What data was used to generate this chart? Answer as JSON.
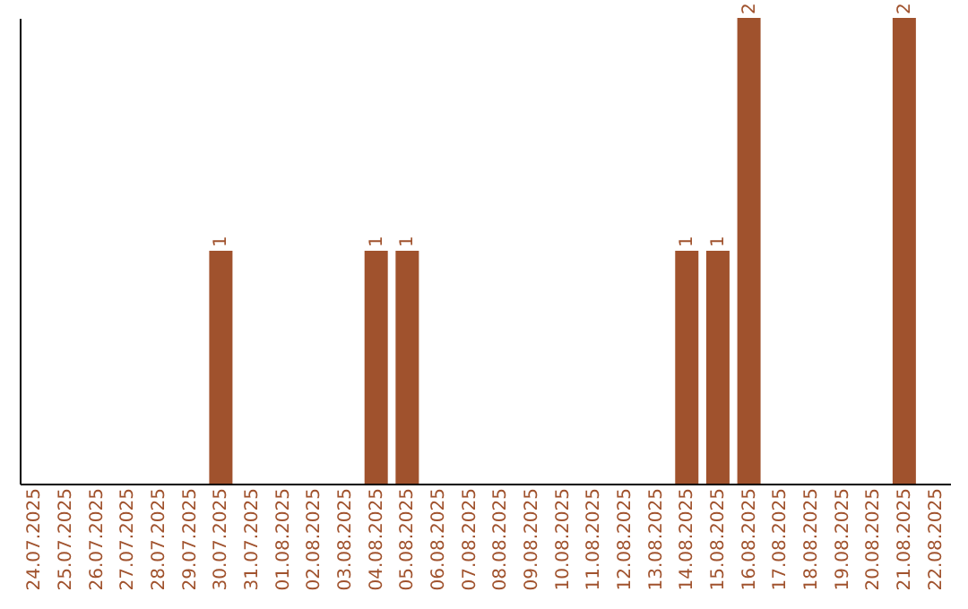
{
  "chart_data": {
    "type": "bar",
    "categories": [
      "24.07.2025",
      "25.07.2025",
      "26.07.2025",
      "27.07.2025",
      "28.07.2025",
      "29.07.2025",
      "30.07.2025",
      "31.07.2025",
      "01.08.2025",
      "02.08.2025",
      "03.08.2025",
      "04.08.2025",
      "05.08.2025",
      "06.08.2025",
      "07.08.2025",
      "08.08.2025",
      "09.08.2025",
      "10.08.2025",
      "11.08.2025",
      "12.08.2025",
      "13.08.2025",
      "14.08.2025",
      "15.08.2025",
      "16.08.2025",
      "17.08.2025",
      "18.08.2025",
      "19.08.2025",
      "20.08.2025",
      "21.08.2025",
      "22.08.2025"
    ],
    "values": [
      0,
      0,
      0,
      0,
      0,
      0,
      1,
      0,
      0,
      0,
      0,
      1,
      1,
      0,
      0,
      0,
      0,
      0,
      0,
      0,
      0,
      1,
      1,
      2,
      0,
      0,
      0,
      0,
      2,
      0
    ],
    "value_labels": [
      null,
      null,
      null,
      null,
      null,
      null,
      "1",
      null,
      null,
      null,
      null,
      "1",
      "1",
      null,
      null,
      null,
      null,
      null,
      null,
      null,
      null,
      "1",
      "1",
      "2",
      null,
      null,
      null,
      null,
      "2",
      null
    ],
    "color": "#a0522d",
    "tick_labels": "x"
  }
}
